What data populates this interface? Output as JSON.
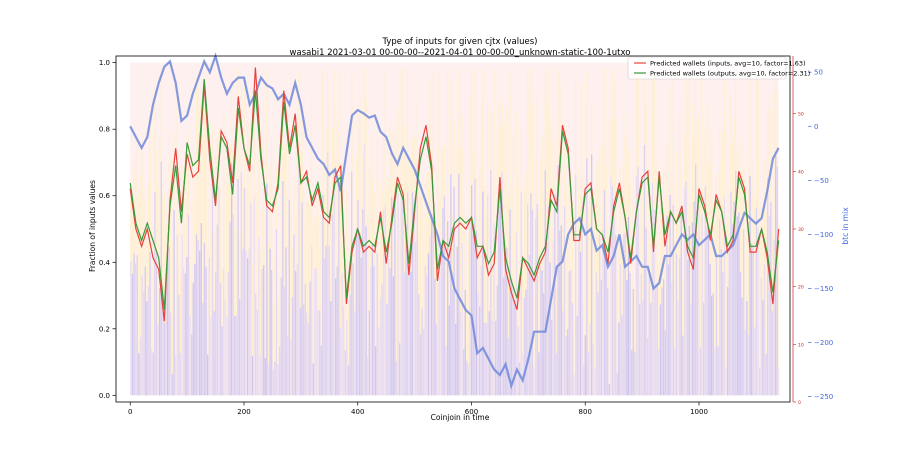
{
  "chart_data": {
    "type": "line",
    "title": "Type of inputs for given cjtx (values)",
    "subtitle": "wasabi1 2021-03-01 00-00-00--2021-04-01 00-00-00_unknown-static-100-1utxo",
    "xlabel": "Coinjoin in time",
    "ylabel": "Fraction of inputs values",
    "ylabel_right_blue": "btc in mix",
    "xlim": [
      -25,
      1160
    ],
    "ylim": [
      -0.02,
      1.02
    ],
    "ylim_right_red": [
      0,
      60
    ],
    "ylim_right_blue": [
      -255,
      65
    ],
    "x_ticks": [
      0,
      200,
      400,
      600,
      800,
      1000
    ],
    "y_ticks": [
      0.0,
      0.2,
      0.4,
      0.6,
      0.8,
      1.0
    ],
    "y_tick_labels": [
      "0.0",
      "0.2",
      "0.4",
      "0.6",
      "0.8",
      "1.0"
    ],
    "y_right_red_ticks": [
      0,
      10,
      20,
      30,
      40,
      50
    ],
    "y_right_blue_ticks": [
      -250,
      -200,
      -150,
      -100,
      -50,
      0,
      50
    ],
    "y_right_blue_tick_labels": [
      "−250",
      "−200",
      "−150",
      "−100",
      "−50",
      "0",
      "50"
    ],
    "legend_placement": "top-right",
    "colors": {
      "inputs": "#e8413a",
      "outputs": "#3a9a3a",
      "btc": "#6f88db",
      "bg_blue": "#7b7bf0",
      "bg_yellow": "#fff0c8",
      "bg_red": "#fde4e2",
      "red_axis": "#cc2222",
      "blue_axis": "#4169e1"
    },
    "series": [
      {
        "name": "Predicted wallets (inputs, avg=10, factor=1.63)",
        "axis": "right-red",
        "x": [
          0,
          10,
          20,
          30,
          40,
          50,
          60,
          70,
          80,
          90,
          100,
          110,
          120,
          130,
          140,
          150,
          160,
          170,
          180,
          190,
          200,
          210,
          220,
          230,
          240,
          250,
          260,
          270,
          280,
          290,
          300,
          310,
          320,
          330,
          340,
          350,
          360,
          370,
          380,
          390,
          400,
          410,
          420,
          430,
          440,
          450,
          460,
          470,
          480,
          490,
          500,
          510,
          520,
          530,
          540,
          550,
          560,
          570,
          580,
          590,
          600,
          610,
          620,
          630,
          640,
          650,
          660,
          670,
          680,
          690,
          700,
          710,
          720,
          730,
          740,
          750,
          760,
          770,
          780,
          790,
          800,
          810,
          820,
          830,
          840,
          850,
          860,
          870,
          880,
          890,
          900,
          910,
          920,
          930,
          940,
          950,
          960,
          970,
          980,
          990,
          1000,
          1010,
          1020,
          1030,
          1040,
          1050,
          1060,
          1070,
          1080,
          1090,
          1100,
          1110,
          1120,
          1130,
          1140
        ],
        "values": [
          37,
          30,
          27,
          30,
          25,
          23,
          14,
          35,
          44,
          33,
          43,
          39,
          40,
          55,
          42,
          34,
          47,
          45,
          38,
          53,
          44,
          40,
          58,
          43,
          34,
          33,
          38,
          54,
          44,
          50,
          38,
          40,
          34,
          37,
          32,
          31,
          39,
          41,
          17,
          26,
          30,
          26,
          27,
          26,
          33,
          24,
          32,
          39,
          36,
          22,
          33,
          44,
          48,
          41,
          21,
          28,
          25,
          30,
          31,
          30,
          32,
          25,
          27,
          22,
          24,
          39,
          23,
          19,
          16,
          25,
          23,
          21,
          24,
          26,
          37,
          34,
          48,
          44,
          28,
          28,
          37,
          38,
          30,
          29,
          24,
          34,
          38,
          32,
          24,
          33,
          39,
          40,
          26,
          40,
          27,
          33,
          31,
          34,
          26,
          23,
          37,
          34,
          28,
          36,
          33,
          26,
          28,
          40,
          37,
          26,
          26,
          30,
          25,
          17,
          30
        ]
      },
      {
        "name": "Predicted wallets (outputs, avg=10, factor=2.31)",
        "axis": "right-red",
        "x": [
          0,
          10,
          20,
          30,
          40,
          50,
          60,
          70,
          80,
          90,
          100,
          110,
          120,
          130,
          140,
          150,
          160,
          170,
          180,
          190,
          200,
          210,
          220,
          230,
          240,
          250,
          260,
          270,
          280,
          290,
          300,
          310,
          320,
          330,
          340,
          350,
          360,
          370,
          380,
          390,
          400,
          410,
          420,
          430,
          440,
          450,
          460,
          470,
          480,
          490,
          500,
          510,
          520,
          530,
          540,
          550,
          560,
          570,
          580,
          590,
          600,
          610,
          620,
          630,
          640,
          650,
          660,
          670,
          680,
          690,
          700,
          710,
          720,
          730,
          740,
          750,
          760,
          770,
          780,
          790,
          800,
          810,
          820,
          830,
          840,
          850,
          860,
          870,
          880,
          890,
          900,
          910,
          920,
          930,
          940,
          950,
          960,
          970,
          980,
          990,
          1000,
          1010,
          1020,
          1030,
          1040,
          1050,
          1060,
          1070,
          1080,
          1090,
          1100,
          1110,
          1120,
          1130,
          1140
        ],
        "values": [
          38,
          31,
          28,
          31,
          28,
          25,
          16,
          34,
          41,
          31,
          45,
          41,
          42,
          56,
          44,
          35,
          46,
          44,
          36,
          51,
          44,
          41,
          54,
          42,
          35,
          34,
          37,
          52,
          43,
          48,
          38,
          39,
          35,
          38,
          33,
          32,
          38,
          39,
          18,
          27,
          30,
          27,
          28,
          27,
          32,
          26,
          31,
          38,
          35,
          24,
          34,
          42,
          46,
          40,
          23,
          28,
          27,
          31,
          32,
          31,
          32,
          27,
          27,
          24,
          26,
          37,
          25,
          21,
          18,
          25,
          24,
          22,
          25,
          27,
          35,
          33,
          47,
          43,
          29,
          29,
          36,
          37,
          30,
          29,
          26,
          33,
          37,
          32,
          25,
          33,
          38,
          39,
          27,
          39,
          29,
          33,
          31,
          33,
          27,
          25,
          36,
          33,
          29,
          35,
          33,
          27,
          29,
          39,
          36,
          27,
          27,
          30,
          26,
          19,
          28
        ]
      },
      {
        "name": "btc in mix",
        "axis": "right-blue",
        "x": [
          0,
          10,
          20,
          30,
          40,
          50,
          60,
          70,
          80,
          90,
          100,
          110,
          120,
          130,
          140,
          150,
          160,
          170,
          180,
          190,
          200,
          210,
          220,
          230,
          240,
          250,
          260,
          270,
          280,
          290,
          300,
          310,
          320,
          330,
          340,
          350,
          360,
          370,
          380,
          390,
          400,
          410,
          420,
          430,
          440,
          450,
          460,
          470,
          480,
          490,
          500,
          510,
          520,
          530,
          540,
          550,
          560,
          570,
          580,
          590,
          600,
          610,
          620,
          630,
          640,
          650,
          660,
          670,
          680,
          690,
          700,
          710,
          720,
          730,
          740,
          750,
          760,
          770,
          780,
          790,
          800,
          810,
          820,
          830,
          840,
          850,
          860,
          870,
          880,
          890,
          900,
          910,
          920,
          930,
          940,
          950,
          960,
          970,
          980,
          990,
          1000,
          1010,
          1020,
          1030,
          1040,
          1050,
          1060,
          1070,
          1080,
          1090,
          1100,
          1110,
          1120,
          1130,
          1140
        ],
        "values": [
          0,
          -10,
          -20,
          -10,
          20,
          40,
          55,
          60,
          40,
          5,
          10,
          30,
          45,
          60,
          50,
          65,
          45,
          30,
          40,
          45,
          45,
          20,
          30,
          45,
          38,
          35,
          25,
          30,
          20,
          40,
          20,
          -10,
          -20,
          -30,
          -35,
          -45,
          -40,
          -60,
          -25,
          10,
          15,
          12,
          8,
          10,
          -5,
          -10,
          -25,
          -35,
          -20,
          -30,
          -40,
          -55,
          -70,
          -85,
          -100,
          -120,
          -125,
          -150,
          -160,
          -170,
          -175,
          -210,
          -205,
          -215,
          -225,
          -230,
          -220,
          -240,
          -225,
          -235,
          -215,
          -190,
          -190,
          -190,
          -160,
          -130,
          -125,
          -100,
          -90,
          -85,
          -100,
          -95,
          -115,
          -110,
          -130,
          -120,
          -100,
          -130,
          -125,
          -120,
          -130,
          -130,
          -150,
          -145,
          -120,
          -120,
          -110,
          -100,
          -105,
          -100,
          -110,
          -105,
          -100,
          -120,
          -120,
          -115,
          -110,
          -95,
          -80,
          -85,
          -90,
          -85,
          -60,
          -30,
          -20
        ]
      }
    ]
  }
}
